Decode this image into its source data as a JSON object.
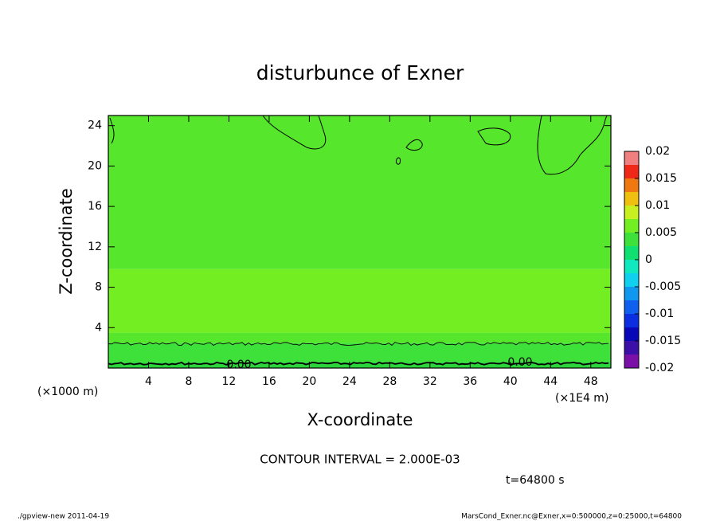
{
  "chart_data": {
    "type": "contour",
    "title": "disturbunce of Exner",
    "xlabel": "X-coordinate",
    "ylabel": "Z-coordinate",
    "x_unit_label": "(×1E4 m)",
    "y_unit_label": "(×1000 m)",
    "xlim": [
      0,
      50
    ],
    "xticks": [
      4,
      8,
      12,
      16,
      20,
      24,
      28,
      32,
      36,
      40,
      44,
      48
    ],
    "ylim": [
      0,
      25
    ],
    "yticks": [
      4,
      8,
      12,
      16,
      20,
      24
    ],
    "bands": [
      {
        "z": [
          0,
          0.6
        ],
        "color": "#2ad43a"
      },
      {
        "z": [
          0.6,
          2.5
        ],
        "color": "#3ee03a"
      },
      {
        "z": [
          2.5,
          3.5
        ],
        "color": "#56e62c"
      },
      {
        "z": [
          3.5,
          9.8
        ],
        "color": "#72ee22"
      },
      {
        "z": [
          9.8,
          25
        ],
        "color": "#56e62c"
      }
    ],
    "contour_labels": [
      "0.00",
      "0.00"
    ],
    "colorbar": {
      "lim": [
        -0.02,
        0.02
      ],
      "ticks": [
        0.02,
        0.015,
        0.01,
        0.005,
        0,
        -0.005,
        -0.01,
        -0.015,
        -0.02
      ],
      "colors": [
        "#7a10a8",
        "#3c10a8",
        "#0808b8",
        "#0a2ee0",
        "#1060f0",
        "#1098f0",
        "#10d0f0",
        "#10e8c0",
        "#10e070",
        "#3ee03a",
        "#72ee22",
        "#c8f020",
        "#f0c010",
        "#f07810",
        "#f02818",
        "#f08080"
      ]
    },
    "contour_interval": "CONTOUR INTERVAL = 2.000E-03",
    "time_label": "t=64800 s",
    "footer_left": "./gpview-new   2011-04-19",
    "footer_right": "MarsCond_Exner.nc@Exner,x=0:500000,z=0:25000,t=64800"
  }
}
